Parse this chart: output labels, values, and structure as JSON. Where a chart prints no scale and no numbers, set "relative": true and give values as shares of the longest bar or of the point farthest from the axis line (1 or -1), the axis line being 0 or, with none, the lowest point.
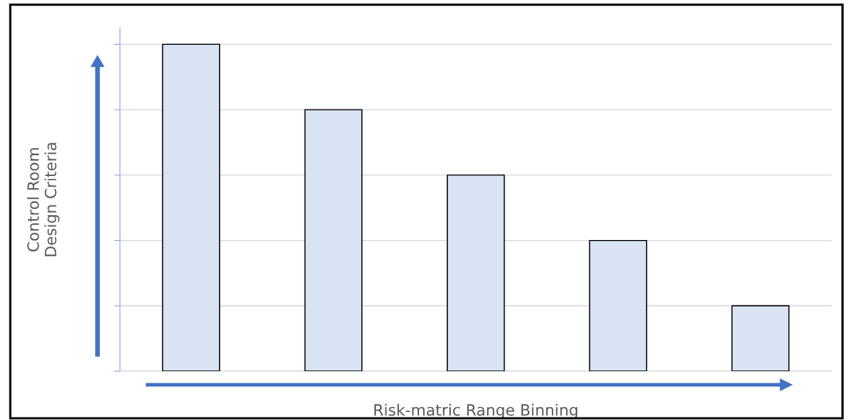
{
  "chart_data": {
    "type": "bar",
    "relative": true,
    "xlabel": "Risk-matric Range Binning",
    "ylabel": "Control Room\nDesign Criteria",
    "categories": [
      null,
      null,
      null,
      null,
      null
    ],
    "values": [
      1,
      0.8,
      0.6,
      0.4,
      0.2
    ],
    "color": "#dae3f3",
    "grid": "y",
    "legend": false
  }
}
